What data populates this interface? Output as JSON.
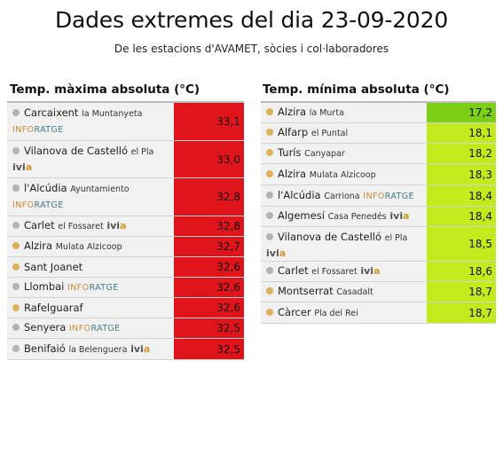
{
  "header": {
    "title": "Dades extremes del dia 23-09-2020",
    "subtitle": "De les estacions d'AVAMET, sòcies i col·laboradores"
  },
  "colors": {
    "dot_gray": "#b3b3b3",
    "dot_orange": "#dcb25a",
    "max_red": "#e0141b",
    "min_green_dark": "#7ccf16",
    "min_green": "#c2ea1c"
  },
  "max_table": {
    "title": "Temp. màxima absoluta (°C)",
    "rows": [
      {
        "station": "Carcaixent",
        "location": "la Muntanyeta",
        "tag": "INFORATGE",
        "value": "33,1",
        "dot": "gray"
      },
      {
        "station": "Vilanova de Castelló",
        "location": "el Pla",
        "tag": "ivia",
        "value": "33,0",
        "dot": "gray"
      },
      {
        "station": "l'Alcúdia",
        "location": "Ayuntamiento",
        "tag": "INFORATGE",
        "value": "32,8",
        "dot": "gray"
      },
      {
        "station": "Carlet",
        "location": "el Fossaret",
        "tag": "ivia",
        "value": "32,8",
        "dot": "gray"
      },
      {
        "station": "Alzira",
        "location": "Mulata Alzicoop",
        "tag": "",
        "value": "32,7",
        "dot": "orange"
      },
      {
        "station": "Sant Joanet",
        "location": "",
        "tag": "",
        "value": "32,6",
        "dot": "orange"
      },
      {
        "station": "Llombai",
        "location": "",
        "tag": "INFORATGE",
        "value": "32,6",
        "dot": "gray"
      },
      {
        "station": "Rafelguaraf",
        "location": "",
        "tag": "",
        "value": "32,6",
        "dot": "orange"
      },
      {
        "station": "Senyera",
        "location": "",
        "tag": "INFORATGE",
        "value": "32,5",
        "dot": "gray"
      },
      {
        "station": "Benifaió",
        "location": "la Belenguera",
        "tag": "ivia",
        "value": "32,5",
        "dot": "gray"
      }
    ]
  },
  "min_table": {
    "title": "Temp. mínima absoluta (°C)",
    "rows": [
      {
        "station": "Alzira",
        "location": "la Murta",
        "tag": "",
        "value": "17,2",
        "dot": "orange"
      },
      {
        "station": "Alfarp",
        "location": "el Puntal",
        "tag": "",
        "value": "18,1",
        "dot": "orange"
      },
      {
        "station": "Turís",
        "location": "Canyapar",
        "tag": "",
        "value": "18,2",
        "dot": "orange"
      },
      {
        "station": "Alzira",
        "location": "Mulata Alzicoop",
        "tag": "",
        "value": "18,3",
        "dot": "orange"
      },
      {
        "station": "l'Alcúdia",
        "location": "Carriona",
        "tag": "INFORATGE",
        "value": "18,4",
        "dot": "gray"
      },
      {
        "station": "Algemesí",
        "location": "Casa Penedés",
        "tag": "ivia",
        "value": "18,4",
        "dot": "gray"
      },
      {
        "station": "Vilanova de Castelló",
        "location": "el Pla",
        "tag": "ivia",
        "value": "18,5",
        "dot": "gray"
      },
      {
        "station": "Carlet",
        "location": "el Fossaret",
        "tag": "ivia",
        "value": "18,6",
        "dot": "gray"
      },
      {
        "station": "Montserrat",
        "location": "Casadalt",
        "tag": "",
        "value": "18,7",
        "dot": "orange"
      },
      {
        "station": "Càrcer",
        "location": "Pla del Rei",
        "tag": "",
        "value": "18,7",
        "dot": "orange"
      }
    ]
  }
}
